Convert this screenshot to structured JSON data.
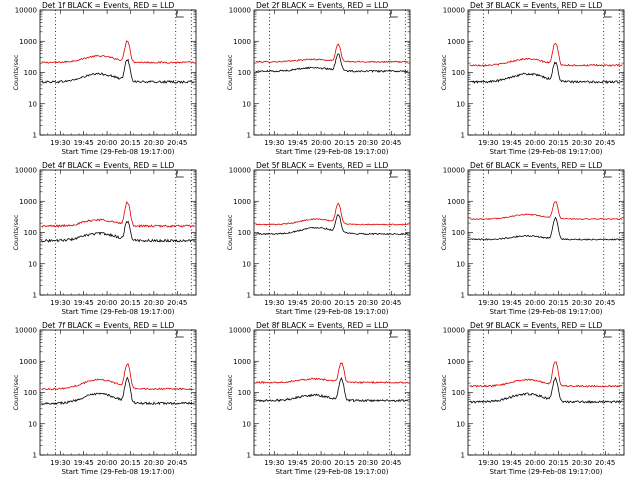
{
  "figure": {
    "colors": {
      "events": "#000000",
      "lld": "#dd0000",
      "vline": "#000000"
    },
    "panel_ids": [
      "1f",
      "2f",
      "3f",
      "4f",
      "5f",
      "6f",
      "7f",
      "8f",
      "9f"
    ]
  },
  "chart_data": [
    {
      "type": "line",
      "title": "Det 1f BLACK = Events, RED = LLD",
      "xlabel": "Start Time (29-Feb-08 19:17:00)",
      "ylabel": "Counts/sec",
      "x_ticks": [
        "19:30",
        "19:45",
        "20:00",
        "20:15",
        "20:30",
        "20:45"
      ],
      "x_range": [
        "19:17",
        "20:57"
      ],
      "y_scale": "log",
      "ylim": [
        1,
        10000
      ],
      "y_ticks": [
        "1",
        "10",
        "100",
        "1000",
        "10000"
      ],
      "vlines": [
        "19:27",
        "20:44",
        "20:54"
      ],
      "series": [
        {
          "name": "LLD",
          "color": "#dd0000",
          "baseline": 210,
          "bump": 1.6,
          "bump_center": "19:55",
          "peak": 1050,
          "peak_time": "20:13",
          "noise": 0.06
        },
        {
          "name": "Events",
          "color": "#000000",
          "baseline": 50,
          "bump": 1.8,
          "bump_center": "19:55",
          "peak": 260,
          "peak_time": "20:13",
          "noise": 0.08
        }
      ]
    },
    {
      "type": "line",
      "title": "Det 2f BLACK = Events, RED = LLD",
      "xlabel": "Start Time (29-Feb-08 19:17:00)",
      "ylabel": "Counts/sec",
      "x_ticks": [
        "19:30",
        "19:45",
        "20:00",
        "20:15",
        "20:30",
        "20:45"
      ],
      "x_range": [
        "19:17",
        "20:57"
      ],
      "y_scale": "log",
      "ylim": [
        1,
        10000
      ],
      "y_ticks": [
        "1",
        "10",
        "100",
        "1000",
        "10000"
      ],
      "vlines": [
        "19:27",
        "20:44",
        "20:54"
      ],
      "series": [
        {
          "name": "LLD",
          "color": "#dd0000",
          "baseline": 220,
          "bump": 1.2,
          "bump_center": "19:55",
          "peak": 800,
          "peak_time": "20:11",
          "noise": 0.05
        },
        {
          "name": "Events",
          "color": "#000000",
          "baseline": 110,
          "bump": 1.3,
          "bump_center": "19:55",
          "peak": 400,
          "peak_time": "20:11",
          "noise": 0.06
        }
      ]
    },
    {
      "type": "line",
      "title": "Det 3f BLACK = Events, RED = LLD",
      "xlabel": "Start Time (29-Feb-08 19:17:00)",
      "ylabel": "Counts/sec",
      "x_ticks": [
        "19:30",
        "19:45",
        "20:00",
        "20:15",
        "20:30",
        "20:45"
      ],
      "x_range": [
        "19:17",
        "20:57"
      ],
      "y_scale": "log",
      "ylim": [
        1,
        10000
      ],
      "y_ticks": [
        "1",
        "10",
        "100",
        "1000",
        "10000"
      ],
      "vlines": [
        "19:27",
        "20:44",
        "20:54"
      ],
      "series": [
        {
          "name": "LLD",
          "color": "#dd0000",
          "baseline": 170,
          "bump": 1.6,
          "bump_center": "19:55",
          "peak": 900,
          "peak_time": "20:13",
          "noise": 0.06
        },
        {
          "name": "Events",
          "color": "#000000",
          "baseline": 50,
          "bump": 1.8,
          "bump_center": "19:55",
          "peak": 210,
          "peak_time": "20:13",
          "noise": 0.08
        }
      ]
    },
    {
      "type": "line",
      "title": "Det 4f BLACK = Events, RED = LLD",
      "xlabel": "Start Time (29-Feb-08 19:17:00)",
      "ylabel": "Counts/sec",
      "x_ticks": [
        "19:30",
        "19:45",
        "20:00",
        "20:15",
        "20:30",
        "20:45"
      ],
      "x_range": [
        "19:17",
        "20:57"
      ],
      "y_scale": "log",
      "ylim": [
        1,
        10000
      ],
      "y_ticks": [
        "1",
        "10",
        "100",
        "1000",
        "10000"
      ],
      "vlines": [
        "19:27",
        "20:44",
        "20:54"
      ],
      "series": [
        {
          "name": "LLD",
          "color": "#dd0000",
          "baseline": 160,
          "bump": 1.6,
          "bump_center": "19:55",
          "peak": 950,
          "peak_time": "20:13",
          "noise": 0.08
        },
        {
          "name": "Events",
          "color": "#000000",
          "baseline": 55,
          "bump": 1.7,
          "bump_center": "19:55",
          "peak": 230,
          "peak_time": "20:13",
          "noise": 0.09
        }
      ]
    },
    {
      "type": "line",
      "title": "Det 5f BLACK = Events, RED = LLD",
      "xlabel": "Start Time (29-Feb-08 19:17:00)",
      "ylabel": "Counts/sec",
      "x_ticks": [
        "19:30",
        "19:45",
        "20:00",
        "20:15",
        "20:30",
        "20:45"
      ],
      "x_range": [
        "19:17",
        "20:57"
      ],
      "y_scale": "log",
      "ylim": [
        1,
        10000
      ],
      "y_ticks": [
        "1",
        "10",
        "100",
        "1000",
        "10000"
      ],
      "vlines": [
        "19:27",
        "20:44",
        "20:54"
      ],
      "series": [
        {
          "name": "LLD",
          "color": "#dd0000",
          "baseline": 180,
          "bump": 1.5,
          "bump_center": "19:57",
          "peak": 850,
          "peak_time": "20:11",
          "noise": 0.04
        },
        {
          "name": "Events",
          "color": "#000000",
          "baseline": 90,
          "bump": 1.6,
          "bump_center": "19:57",
          "peak": 380,
          "peak_time": "20:11",
          "noise": 0.05
        }
      ]
    },
    {
      "type": "line",
      "title": "Det 6f BLACK = Events, RED = LLD",
      "xlabel": "Start Time (29-Feb-08 19:17:00)",
      "ylabel": "Counts/sec",
      "x_ticks": [
        "19:30",
        "19:45",
        "20:00",
        "20:15",
        "20:30",
        "20:45"
      ],
      "x_range": [
        "19:17",
        "20:57"
      ],
      "y_scale": "log",
      "ylim": [
        1,
        10000
      ],
      "y_ticks": [
        "1",
        "10",
        "100",
        "1000",
        "10000"
      ],
      "vlines": [
        "19:27",
        "20:44",
        "20:54"
      ],
      "series": [
        {
          "name": "LLD",
          "color": "#dd0000",
          "baseline": 270,
          "bump": 1.4,
          "bump_center": "19:55",
          "peak": 1000,
          "peak_time": "20:13",
          "noise": 0.04
        },
        {
          "name": "Events",
          "color": "#000000",
          "baseline": 60,
          "bump": 1.3,
          "bump_center": "19:55",
          "peak": 290,
          "peak_time": "20:13",
          "noise": 0.05
        }
      ]
    },
    {
      "type": "line",
      "title": "Det 7f BLACK = Events, RED = LLD",
      "xlabel": "Start Time (29-Feb-08 19:17:00)",
      "ylabel": "Counts/sec",
      "x_ticks": [
        "19:30",
        "19:45",
        "20:00",
        "20:15",
        "20:30",
        "20:45"
      ],
      "x_range": [
        "19:17",
        "20:57"
      ],
      "y_scale": "log",
      "ylim": [
        1,
        10000
      ],
      "y_ticks": [
        "1",
        "10",
        "100",
        "1000",
        "10000"
      ],
      "vlines": [
        "19:27",
        "20:44",
        "20:54"
      ],
      "series": [
        {
          "name": "LLD",
          "color": "#dd0000",
          "baseline": 130,
          "bump": 2.0,
          "bump_center": "19:55",
          "peak": 850,
          "peak_time": "20:13",
          "noise": 0.06
        },
        {
          "name": "Events",
          "color": "#000000",
          "baseline": 45,
          "bump": 2.0,
          "bump_center": "19:55",
          "peak": 280,
          "peak_time": "20:13",
          "noise": 0.08
        }
      ]
    },
    {
      "type": "line",
      "title": "Det 8f BLACK = Events, RED = LLD",
      "xlabel": "Start Time (29-Feb-08 19:17:00)",
      "ylabel": "Counts/sec",
      "x_ticks": [
        "19:30",
        "19:45",
        "20:00",
        "20:15",
        "20:30",
        "20:45"
      ],
      "x_range": [
        "19:17",
        "20:57"
      ],
      "y_scale": "log",
      "ylim": [
        1,
        10000
      ],
      "y_ticks": [
        "1",
        "10",
        "100",
        "1000",
        "10000"
      ],
      "vlines": [
        "19:27",
        "20:44",
        "20:54"
      ],
      "series": [
        {
          "name": "LLD",
          "color": "#dd0000",
          "baseline": 210,
          "bump": 1.3,
          "bump_center": "19:55",
          "peak": 900,
          "peak_time": "20:13",
          "noise": 0.06
        },
        {
          "name": "Events",
          "color": "#000000",
          "baseline": 55,
          "bump": 1.5,
          "bump_center": "19:55",
          "peak": 270,
          "peak_time": "20:13",
          "noise": 0.08
        }
      ]
    },
    {
      "type": "line",
      "title": "Det 9f BLACK = Events, RED = LLD",
      "xlabel": "Start Time (29-Feb-08 19:17:00)",
      "ylabel": "Counts/sec",
      "x_ticks": [
        "19:30",
        "19:45",
        "20:00",
        "20:15",
        "20:30",
        "20:45"
      ],
      "x_range": [
        "19:17",
        "20:57"
      ],
      "y_scale": "log",
      "ylim": [
        1,
        10000
      ],
      "y_ticks": [
        "1",
        "10",
        "100",
        "1000",
        "10000"
      ],
      "vlines": [
        "19:27",
        "20:44",
        "20:54"
      ],
      "series": [
        {
          "name": "LLD",
          "color": "#dd0000",
          "baseline": 160,
          "bump": 1.6,
          "bump_center": "19:55",
          "peak": 1000,
          "peak_time": "20:13",
          "noise": 0.06
        },
        {
          "name": "Events",
          "color": "#000000",
          "baseline": 50,
          "bump": 1.8,
          "bump_center": "19:55",
          "peak": 280,
          "peak_time": "20:13",
          "noise": 0.08
        }
      ]
    }
  ]
}
